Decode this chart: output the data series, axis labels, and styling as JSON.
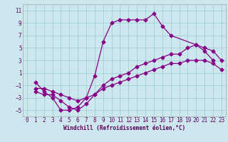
{
  "xlabel": "Windchill (Refroidissement éolien,°C)",
  "background_color": "#cce8ee",
  "grid_color": "#99cccc",
  "line_color": "#880088",
  "xlim": [
    -0.5,
    23.5
  ],
  "ylim": [
    -6.0,
    12.0
  ],
  "xticks": [
    0,
    1,
    2,
    3,
    4,
    5,
    6,
    7,
    8,
    9,
    10,
    11,
    12,
    13,
    14,
    15,
    16,
    17,
    18,
    19,
    20,
    21,
    22,
    23
  ],
  "yticks": [
    -5,
    -3,
    -1,
    1,
    3,
    5,
    7,
    9,
    11
  ],
  "line1_x": [
    1,
    2,
    3,
    4,
    5,
    6,
    7,
    8,
    9,
    10,
    11,
    12,
    13,
    14,
    15,
    16,
    17,
    20,
    21,
    22
  ],
  "line1_y": [
    -0.5,
    -2.0,
    -3.0,
    -5.0,
    -5.0,
    -4.5,
    -3.0,
    0.5,
    6.0,
    9.0,
    9.5,
    9.5,
    9.5,
    9.5,
    10.5,
    8.5,
    7.0,
    5.5,
    4.5,
    3.0
  ],
  "line2_x": [
    1,
    2,
    3,
    4,
    5,
    6,
    7,
    8,
    9,
    10,
    11,
    12,
    13,
    14,
    15,
    16,
    17,
    18,
    19,
    20,
    21,
    22,
    23
  ],
  "line2_y": [
    -2.0,
    -2.5,
    -2.5,
    -3.5,
    -4.5,
    -5.0,
    -4.0,
    -2.5,
    -1.0,
    0.0,
    0.5,
    1.0,
    2.0,
    2.5,
    3.0,
    3.5,
    4.0,
    4.0,
    5.0,
    5.5,
    5.0,
    4.5,
    3.0
  ],
  "line3_x": [
    1,
    2,
    3,
    4,
    5,
    6,
    7,
    8,
    9,
    10,
    11,
    12,
    13,
    14,
    15,
    16,
    17,
    18,
    19,
    20,
    21,
    22,
    23
  ],
  "line3_y": [
    -1.5,
    -1.5,
    -2.0,
    -2.5,
    -3.0,
    -3.5,
    -3.0,
    -2.5,
    -1.5,
    -1.0,
    -0.5,
    0.0,
    0.5,
    1.0,
    1.5,
    2.0,
    2.5,
    2.5,
    3.0,
    3.0,
    3.0,
    2.5,
    1.5
  ],
  "marker": "D",
  "markersize": 2.5,
  "linewidth": 0.9
}
